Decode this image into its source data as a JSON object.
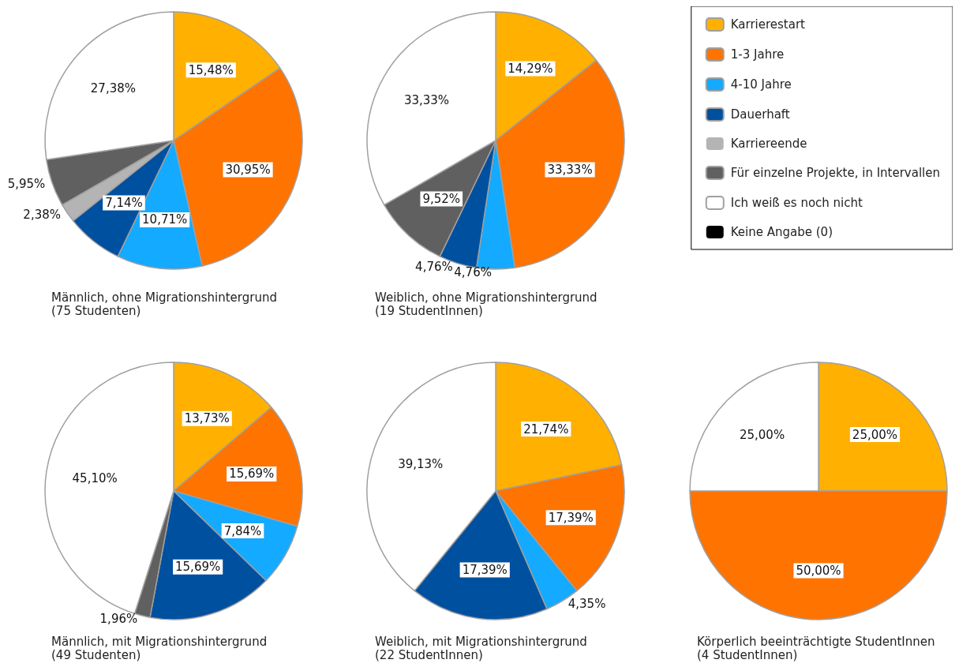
{
  "chart_data": [
    {
      "type": "pie",
      "title": "Männlich, ohne Migrationshintergrund",
      "subtitle": "(75 Studenten)",
      "categories": [
        null,
        null,
        null,
        null,
        null,
        null,
        null
      ],
      "values": [
        15.48,
        30.95,
        10.71,
        7.14,
        2.38,
        5.95,
        27.38
      ],
      "colors": [
        "#ffb000",
        "#ff7300",
        "#14aaff",
        "#0050a0",
        "#b4b4b4",
        "#606060",
        "#ffffff"
      ],
      "value_labels": [
        "15,48%",
        "30,95%",
        "10,71%",
        "7,14%",
        "2,38%",
        "5,95%",
        "27,38%"
      ]
    },
    {
      "type": "pie",
      "title": "Weiblich, ohne Migrationshintergrund",
      "subtitle": "(19 StudentInnen)",
      "categories": [
        "Karrierestart",
        "1-3 Jahre",
        "4-10 Jahre",
        "Dauerhaft",
        "Karriereende",
        "Für einzelne Projekte, in Intervallen",
        "Ich weiß es noch nicht",
        "Keine Angabe (0)"
      ],
      "values": [
        14.29,
        33.33,
        4.76,
        4.76,
        0,
        9.52,
        33.33,
        0
      ],
      "colors": [
        "#ffb000",
        "#ff7300",
        "#14aaff",
        "#0050a0",
        "#b4b4b4",
        "#606060",
        "#ffffff",
        "#000000"
      ],
      "value_labels": [
        "14,29%",
        "33,33%",
        "4,76%",
        "4,76%",
        null,
        "9,52%",
        "33,33%",
        null
      ],
      "legend": "right"
    },
    {
      "type": "pie",
      "title": "Männlich, mit Migrationshintergrund",
      "subtitle": "(49 Studenten)",
      "categories": [
        null,
        null,
        null,
        null,
        null,
        null
      ],
      "values": [
        13.73,
        15.69,
        7.84,
        15.69,
        1.96,
        45.1
      ],
      "colors": [
        "#ffb000",
        "#ff7300",
        "#14aaff",
        "#0050a0",
        "#606060",
        "#ffffff"
      ],
      "value_labels": [
        "13,73%",
        "15,69%",
        "7,84%",
        "15,69%",
        "1,96%",
        "45,10%"
      ]
    },
    {
      "type": "pie",
      "title": "Weiblich, mit Migrationshintergrund",
      "subtitle": "(22 StudentInnen)",
      "categories": [
        null,
        null,
        null,
        null,
        null
      ],
      "values": [
        21.74,
        17.39,
        4.35,
        17.39,
        39.13
      ],
      "colors": [
        "#ffb000",
        "#ff7300",
        "#14aaff",
        "#0050a0",
        "#ffffff"
      ],
      "value_labels": [
        "21,74%",
        "17,39%",
        "4,35%",
        "17,39%",
        "39,13%"
      ]
    },
    {
      "type": "pie",
      "title": "Körperlich beeinträchtigte StudentInnen",
      "subtitle": "(4 StudentInnen)",
      "categories": [
        null,
        null,
        null
      ],
      "values": [
        25.0,
        50.0,
        25.0
      ],
      "colors": [
        "#ffb000",
        "#ff7300",
        "#ffffff"
      ],
      "value_labels": [
        "25,00%",
        "50,00%",
        "25,00%"
      ]
    }
  ]
}
